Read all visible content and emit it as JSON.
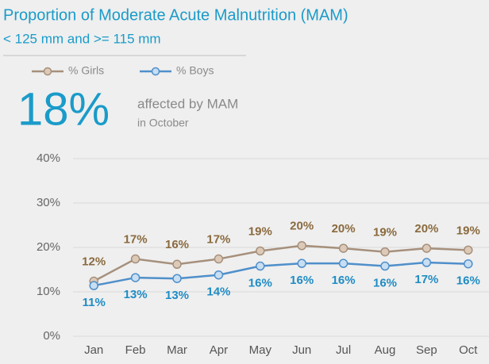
{
  "chart_data": {
    "type": "line",
    "title": "Proportion of Moderate Acute Malnutrition (MAM)",
    "subtitle": "< 125 mm and >= 115 mm",
    "annotations": {
      "headline": "18%",
      "text": "affected by MAM",
      "subtext": "in October"
    },
    "categories": [
      "Jan",
      "Feb",
      "Mar",
      "Apr",
      "May",
      "Jun",
      "Jul",
      "Aug",
      "Sep",
      "Oct"
    ],
    "series": [
      {
        "name": "% Girls",
        "color": "#a6907c",
        "marker_fill": "#dcc9b8",
        "label_color": "#8a6a3e",
        "values": [
          12.4,
          17.4,
          16.2,
          17.4,
          19.2,
          20.4,
          19.8,
          19.0,
          19.8,
          19.4
        ],
        "value_labels": [
          "12%",
          "17%",
          "16%",
          "17%",
          "19%",
          "20%",
          "20%",
          "19%",
          "20%",
          "19%"
        ]
      },
      {
        "name": "% Boys",
        "color": "#4f8fca",
        "marker_fill": "#c8def2",
        "label_color": "#1f8cc4",
        "values": [
          11.4,
          13.2,
          13.0,
          13.8,
          15.8,
          16.4,
          16.4,
          15.8,
          16.6,
          16.3
        ],
        "value_labels": [
          "11%",
          "13%",
          "13%",
          "14%",
          "16%",
          "16%",
          "16%",
          "16%",
          "17%",
          "16%"
        ]
      }
    ],
    "ylim": [
      0,
      40
    ],
    "yticks": [
      {
        "value": 0,
        "label": "0%"
      },
      {
        "value": 10,
        "label": "10%"
      },
      {
        "value": 20,
        "label": "20%"
      },
      {
        "value": 30,
        "label": "30%"
      },
      {
        "value": 40,
        "label": "40%"
      }
    ],
    "grid": true
  }
}
